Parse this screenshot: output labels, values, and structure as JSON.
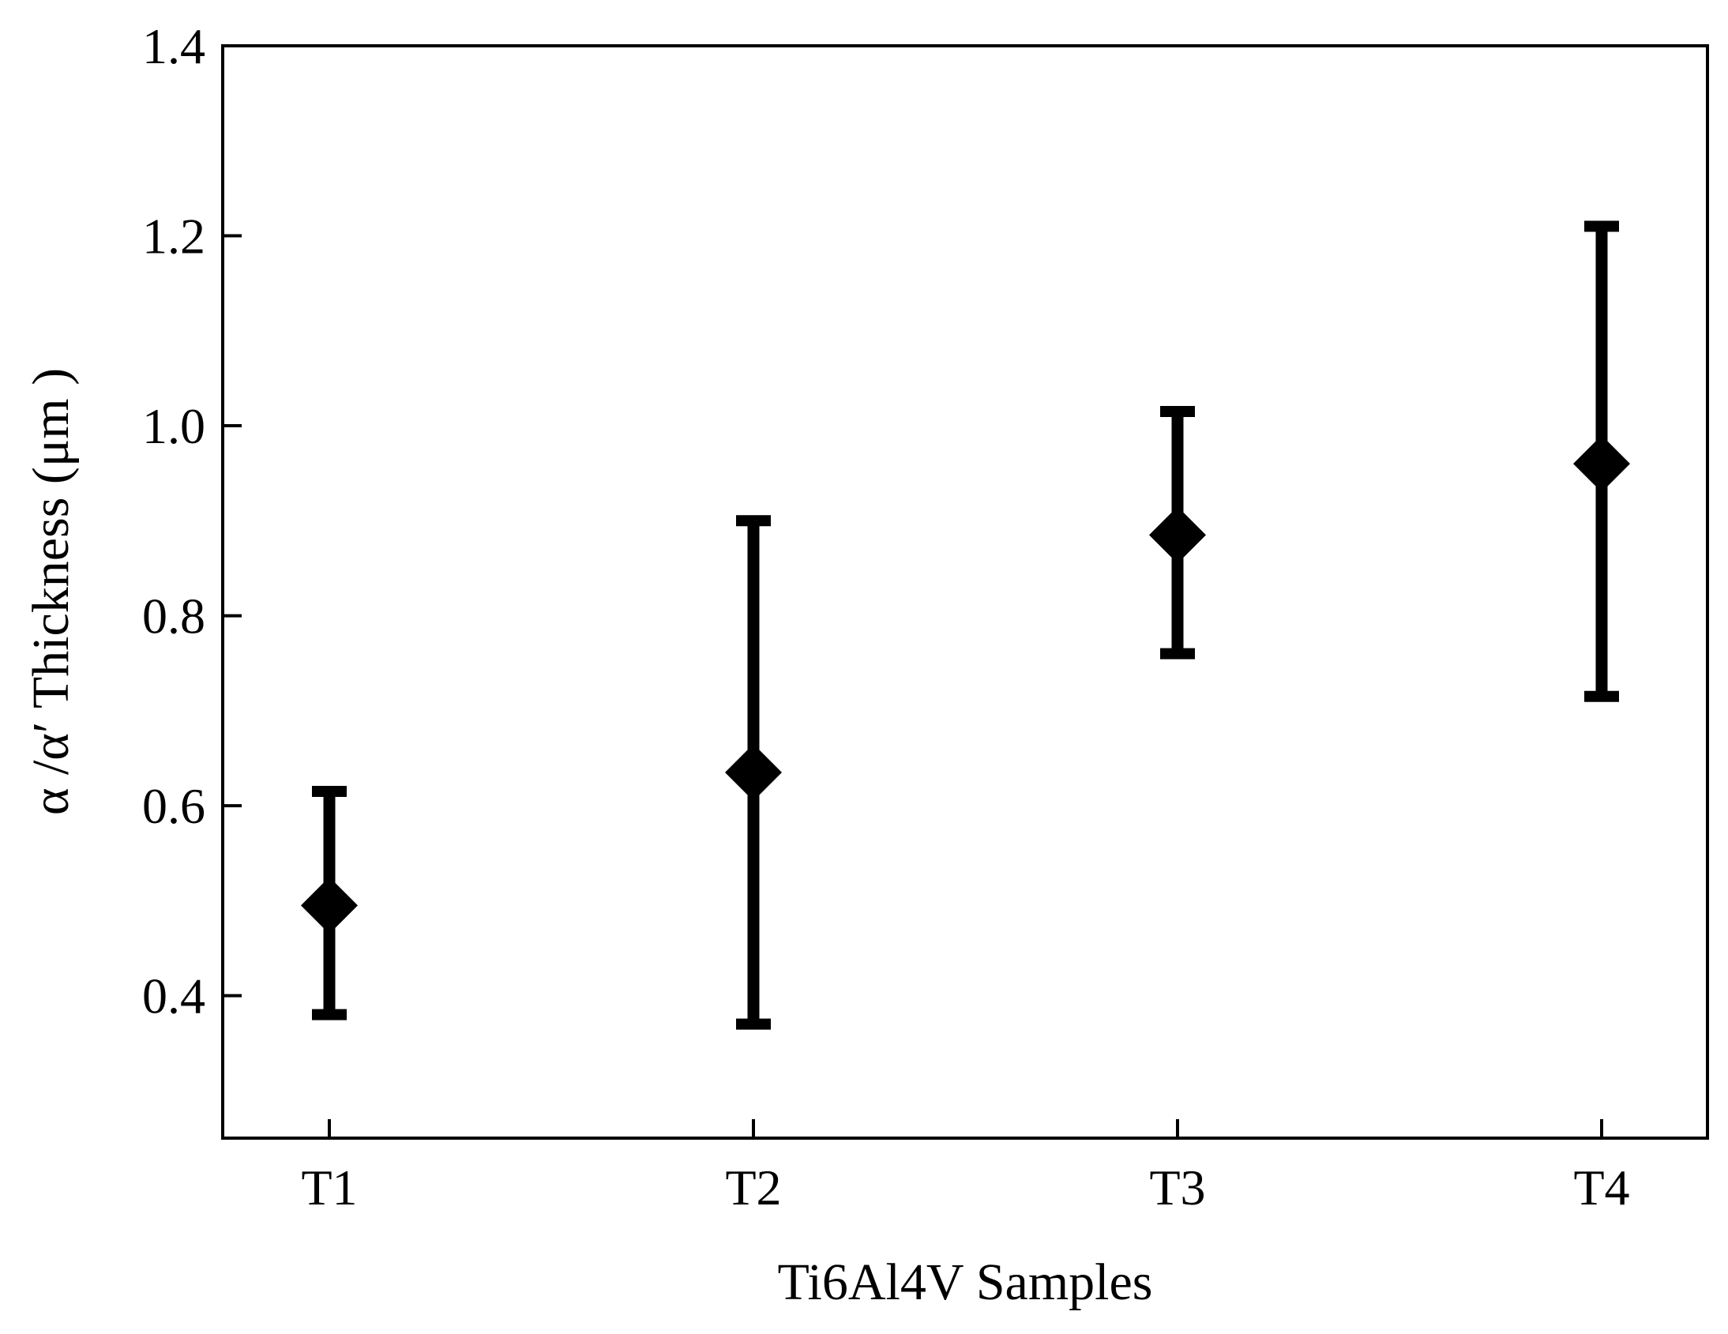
{
  "chart_data": {
    "type": "scatter",
    "title": "",
    "xlabel": "Ti6Al4V Samples",
    "ylabel": "α /α′ Thickness (μm )",
    "categories": [
      "T1",
      "T2",
      "T3",
      "T4"
    ],
    "series": [
      {
        "values": [
          0.495,
          0.635,
          0.885,
          0.96
        ],
        "error_low": [
          0.38,
          0.37,
          0.76,
          0.715
        ],
        "error_high": [
          0.615,
          0.9,
          1.015,
          1.21
        ]
      }
    ],
    "ylim": [
      0.25,
      1.4
    ],
    "yticks": [
      0.4,
      0.6,
      0.8,
      1.0,
      1.2,
      1.4
    ],
    "ytick_labels": [
      "0.4",
      "0.6",
      "0.8",
      "1.0",
      "1.2",
      "1.4"
    ],
    "marker": "diamond",
    "grid": false,
    "legend": "none",
    "colors": {
      "marker": "#000000",
      "axes": "#000000",
      "background": "#ffffff"
    }
  }
}
